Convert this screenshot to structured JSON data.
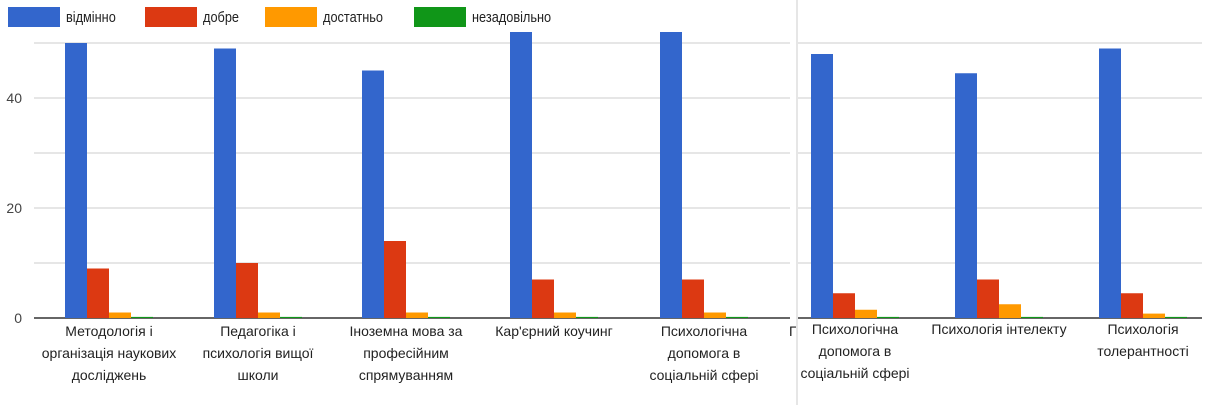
{
  "chart_data": [
    {
      "type": "bar",
      "categories": [
        "Методологія і організація наукових досліджень",
        "Педагогіка і психологія вищої школи",
        "Іноземна мова за професійним спрямуванням",
        "Кар'єрний коучинг",
        "Психологічна допомога в соціальній сфері"
      ],
      "category_lines": [
        [
          "Методологія і",
          "організація наукових",
          "досліджень"
        ],
        [
          "Педагогіка і",
          "психологія вищої",
          "школи"
        ],
        [
          "Іноземна мова за",
          "професійним",
          "спрямуванням"
        ],
        [
          "Кар'єрний коучинг"
        ],
        [
          "Психологічна",
          "допомога в",
          "соціальній сфері"
        ]
      ],
      "series": [
        {
          "name": "відмінно",
          "values": [
            50,
            49,
            45,
            52,
            52
          ]
        },
        {
          "name": "добре",
          "values": [
            9,
            10,
            14,
            7,
            7
          ]
        },
        {
          "name": "достатньо",
          "values": [
            1,
            1,
            1,
            1,
            1
          ]
        },
        {
          "name": "незадовільно",
          "values": [
            0.2,
            0.2,
            0.2,
            0.2,
            0.2
          ]
        }
      ],
      "yticks": [
        "0",
        "20",
        "40"
      ],
      "ylim": [
        0,
        55
      ],
      "legend_position": "top-left",
      "grid": true,
      "clipped_label": "П"
    },
    {
      "type": "bar",
      "categories": [
        "Психологічна допомога в соціальній сфері",
        "Психологія інтелекту",
        "Психологія толерантності"
      ],
      "category_lines": [
        [
          "Психологічна",
          "допомога в",
          "соціальній сфері"
        ],
        [
          "Психологія інтелекту"
        ],
        [
          "Психологія",
          "толерантності"
        ]
      ],
      "series": [
        {
          "name": "відмінно",
          "values": [
            48,
            44.5,
            49
          ]
        },
        {
          "name": "добре",
          "values": [
            4.5,
            7,
            4.5
          ]
        },
        {
          "name": "достатньо",
          "values": [
            1.5,
            2.5,
            0.8
          ]
        },
        {
          "name": "незадовільно",
          "values": [
            0.2,
            0.2,
            0.2
          ]
        }
      ],
      "ylim": [
        0,
        55
      ],
      "grid": true
    }
  ],
  "colors": [
    "#3366cc",
    "#dc3912",
    "#ff9900",
    "#109618"
  ],
  "axis_color": "#333333",
  "grid_color": "#cccccc"
}
